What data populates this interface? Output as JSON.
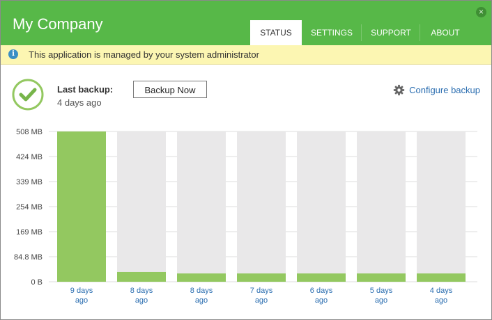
{
  "window": {
    "title": "My Company",
    "close_glyph": "×"
  },
  "tabs": [
    {
      "label": "STATUS",
      "active": true
    },
    {
      "label": "SETTINGS",
      "active": false
    },
    {
      "label": "SUPPORT",
      "active": false
    },
    {
      "label": "ABOUT",
      "active": false
    }
  ],
  "banner": {
    "icon": "info-icon",
    "icon_glyph": "i",
    "text": "This application is managed by your system administrator"
  },
  "status": {
    "icon": "checkmark-icon",
    "last_backup_label": "Last backup:",
    "last_backup_value": "4 days ago",
    "backup_now_label": "Backup Now",
    "configure_label": "Configure backup",
    "configure_icon": "gear-icon"
  },
  "colors": {
    "header": "#57b848",
    "accent_green": "#93c860",
    "bar_bg": "#e9e8e9",
    "link_blue": "#2a6db0",
    "banner": "#fcf6b2"
  },
  "chart_data": {
    "type": "bar",
    "categories": [
      [
        "9 days",
        "ago"
      ],
      [
        "8 days",
        "ago"
      ],
      [
        "8 days",
        "ago"
      ],
      [
        "7 days",
        "ago"
      ],
      [
        "6 days",
        "ago"
      ],
      [
        "5 days",
        "ago"
      ],
      [
        "4 days",
        "ago"
      ]
    ],
    "values_mb": [
      508,
      33,
      28,
      28,
      28,
      28,
      28
    ],
    "yticks": [
      "508 MB",
      "424 MB",
      "339 MB",
      "254 MB",
      "169 MB",
      "84.8 MB",
      "0 B"
    ],
    "ylim": [
      0,
      508
    ],
    "grid": true
  }
}
